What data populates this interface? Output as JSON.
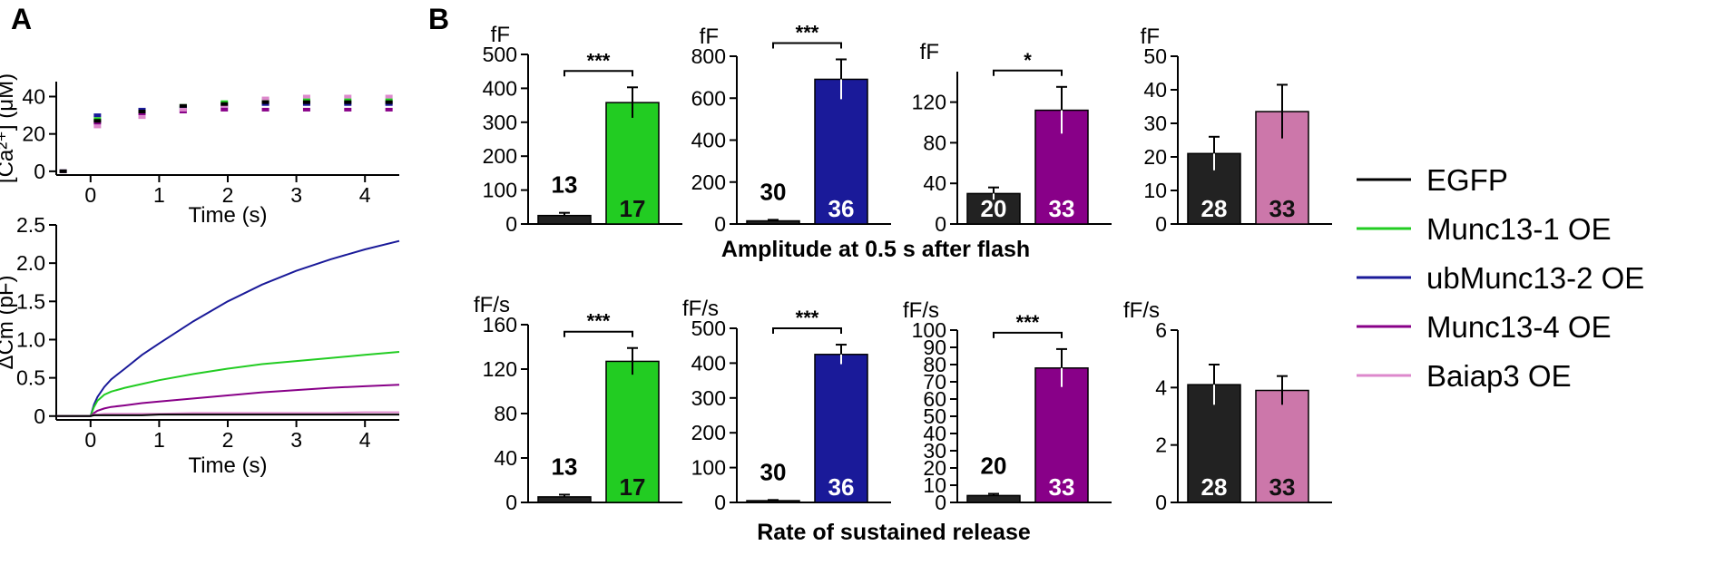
{
  "panel_labels": {
    "a": "A",
    "b": "B"
  },
  "legend": [
    {
      "label": "EGFP",
      "color": "#000000"
    },
    {
      "label": "Munc13-1 OE",
      "color": "#22cc22"
    },
    {
      "label": "ubMunc13-2 OE",
      "color": "#1a1a99"
    },
    {
      "label": "Munc13-4 OE",
      "color": "#880088"
    },
    {
      "label": "Baiap3 OE",
      "color": "#dd88cc"
    }
  ],
  "row_titles": {
    "amplitude": "Amplitude at 0.5 s after flash",
    "rate": "Rate of sustained release"
  },
  "chart_data": [
    {
      "id": "ca",
      "type": "scatter",
      "ylabel": "[Ca²⁺] (μM)",
      "xlabel": "Time (s)",
      "xlim": [
        -0.5,
        4.5
      ],
      "ylim": [
        -2,
        48
      ],
      "xticks": [
        0,
        1,
        2,
        3,
        4
      ],
      "yticks": [
        0,
        20,
        40
      ],
      "x": [
        -0.4,
        0.1,
        0.75,
        1.35,
        1.95,
        2.55,
        3.15,
        3.75,
        4.35
      ],
      "series": [
        {
          "color": "#22cc22",
          "values": [
            0,
            28,
            31,
            35,
            37,
            38,
            38,
            38,
            38
          ]
        },
        {
          "color": "#1a1a99",
          "values": [
            0,
            30,
            33,
            34,
            35,
            36,
            36,
            36,
            36
          ]
        },
        {
          "color": "#880088",
          "values": [
            0,
            26,
            31,
            32,
            33,
            33,
            33,
            33,
            33
          ]
        },
        {
          "color": "#dd88cc",
          "values": [
            0,
            24,
            29,
            33,
            35,
            39,
            40,
            40,
            40
          ]
        },
        {
          "color": "#000000",
          "values": [
            0,
            27,
            32,
            35,
            36,
            37,
            37,
            37,
            37
          ]
        }
      ]
    },
    {
      "id": "cm",
      "type": "line",
      "ylabel": "ΔCm (pF)",
      "xlabel": "Time (s)",
      "xlim": [
        -0.5,
        4.5
      ],
      "ylim": [
        -0.05,
        2.5
      ],
      "xticks": [
        0,
        1,
        2,
        3,
        4
      ],
      "yticks": [
        0,
        0.5,
        1.0,
        1.5,
        2.0,
        2.5
      ],
      "ytick_labels": [
        "0",
        "0.5",
        "1.0",
        "1.5",
        "2.0",
        "2.5"
      ],
      "x": [
        -0.5,
        0,
        0.05,
        0.1,
        0.2,
        0.3,
        0.5,
        0.75,
        1.0,
        1.5,
        2.0,
        2.5,
        3.0,
        3.5,
        4.0,
        4.5
      ],
      "series": [
        {
          "color": "#1a1a99",
          "values": [
            0,
            0,
            0.15,
            0.25,
            0.38,
            0.48,
            0.62,
            0.8,
            0.95,
            1.24,
            1.5,
            1.72,
            1.9,
            2.05,
            2.18,
            2.29
          ]
        },
        {
          "color": "#22cc22",
          "values": [
            0,
            0,
            0.12,
            0.2,
            0.28,
            0.32,
            0.37,
            0.42,
            0.47,
            0.55,
            0.62,
            0.68,
            0.72,
            0.76,
            0.8,
            0.84
          ]
        },
        {
          "color": "#880088",
          "values": [
            0,
            0,
            0.04,
            0.07,
            0.1,
            0.12,
            0.14,
            0.17,
            0.19,
            0.23,
            0.27,
            0.31,
            0.34,
            0.37,
            0.39,
            0.41
          ]
        },
        {
          "color": "#dd88cc",
          "values": [
            0,
            0,
            0.02,
            0.02,
            0.03,
            0.03,
            0.03,
            0.03,
            0.03,
            0.04,
            0.04,
            0.04,
            0.04,
            0.04,
            0.05,
            0.05
          ]
        },
        {
          "color": "#000000",
          "values": [
            0,
            0,
            0.01,
            0.01,
            0.01,
            0.01,
            0.01,
            0.01,
            0.02,
            0.02,
            0.02,
            0.02,
            0.02,
            0.02,
            0.02,
            0.02
          ]
        }
      ]
    },
    {
      "id": "amp1",
      "type": "bar",
      "unit": "fF",
      "ylim": [
        0,
        500
      ],
      "yticks": [
        0,
        100,
        200,
        300,
        400,
        500
      ],
      "significance": "***",
      "bars": [
        {
          "value": 25,
          "err": 8,
          "n": "13",
          "color": "#222222",
          "ncolor": "#000000",
          "nposition": "above"
        },
        {
          "value": 358,
          "err": 45,
          "n": "17",
          "color": "#22cc22",
          "ncolor": "#111111",
          "nposition": "inside"
        }
      ]
    },
    {
      "id": "amp2",
      "type": "bar",
      "unit": "fF",
      "ylim": [
        0,
        800
      ],
      "yticks": [
        0,
        200,
        400,
        600,
        800
      ],
      "significance": "***",
      "bars": [
        {
          "value": 15,
          "err": 5,
          "n": "30",
          "color": "#222222",
          "ncolor": "#000000",
          "nposition": "above"
        },
        {
          "value": 690,
          "err": 95,
          "n": "36",
          "color": "#1a1a99",
          "ncolor": "#ffffff",
          "nposition": "inside"
        }
      ]
    },
    {
      "id": "amp3",
      "type": "bar",
      "unit": "fF",
      "ylim": [
        0,
        150
      ],
      "yticks": [
        0,
        40,
        80,
        120
      ],
      "significance": "*",
      "bars": [
        {
          "value": 30,
          "err": 6,
          "n": "20",
          "color": "#222222",
          "ncolor": "#ffffff",
          "nposition": "inside"
        },
        {
          "value": 112,
          "err": 23,
          "n": "33",
          "color": "#880088",
          "ncolor": "#ffffff",
          "nposition": "inside"
        }
      ]
    },
    {
      "id": "amp4",
      "type": "bar",
      "unit": "fF",
      "ylim": [
        0,
        50
      ],
      "yticks": [
        0,
        10,
        20,
        30,
        40,
        50
      ],
      "bars": [
        {
          "value": 21,
          "err": 5,
          "n": "28",
          "color": "#222222",
          "ncolor": "#ffffff",
          "nposition": "inside"
        },
        {
          "value": 33.5,
          "err": 8,
          "n": "33",
          "color": "#cc77aa",
          "ncolor": "#111111",
          "nposition": "inside"
        }
      ]
    },
    {
      "id": "rate1",
      "type": "bar",
      "unit": "fF/s",
      "ylim": [
        0,
        160
      ],
      "yticks": [
        0,
        40,
        80,
        120,
        160
      ],
      "significance": "***",
      "bars": [
        {
          "value": 5,
          "err": 2,
          "n": "13",
          "color": "#222222",
          "ncolor": "#000000",
          "nposition": "above"
        },
        {
          "value": 127,
          "err": 12,
          "n": "17",
          "color": "#22cc22",
          "ncolor": "#111111",
          "nposition": "inside"
        }
      ]
    },
    {
      "id": "rate2",
      "type": "bar",
      "unit": "fF/s",
      "ylim": [
        0,
        500
      ],
      "yticks": [
        0,
        100,
        200,
        300,
        400,
        500
      ],
      "significance": "***",
      "bars": [
        {
          "value": 5,
          "err": 2,
          "n": "30",
          "color": "#222222",
          "ncolor": "#000000",
          "nposition": "above"
        },
        {
          "value": 425,
          "err": 28,
          "n": "36",
          "color": "#1a1a99",
          "ncolor": "#ffffff",
          "nposition": "inside"
        }
      ]
    },
    {
      "id": "rate3",
      "type": "bar",
      "unit": "fF/s",
      "ylim": [
        0,
        100
      ],
      "yticks": [
        0,
        10,
        20,
        30,
        40,
        50,
        60,
        70,
        80,
        90,
        100
      ],
      "significance": "***",
      "bars": [
        {
          "value": 4,
          "err": 1,
          "n": "20",
          "color": "#222222",
          "ncolor": "#000000",
          "nposition": "above"
        },
        {
          "value": 78,
          "err": 11,
          "n": "33",
          "color": "#880088",
          "ncolor": "#ffffff",
          "nposition": "inside"
        }
      ]
    },
    {
      "id": "rate4",
      "type": "bar",
      "unit": "fF/s",
      "ylim": [
        0,
        6
      ],
      "yticks": [
        0,
        2,
        4,
        6
      ],
      "bars": [
        {
          "value": 4.1,
          "err": 0.7,
          "n": "28",
          "color": "#222222",
          "ncolor": "#ffffff",
          "nposition": "inside"
        },
        {
          "value": 3.9,
          "err": 0.5,
          "n": "33",
          "color": "#cc77aa",
          "ncolor": "#111111",
          "nposition": "inside"
        }
      ]
    }
  ]
}
